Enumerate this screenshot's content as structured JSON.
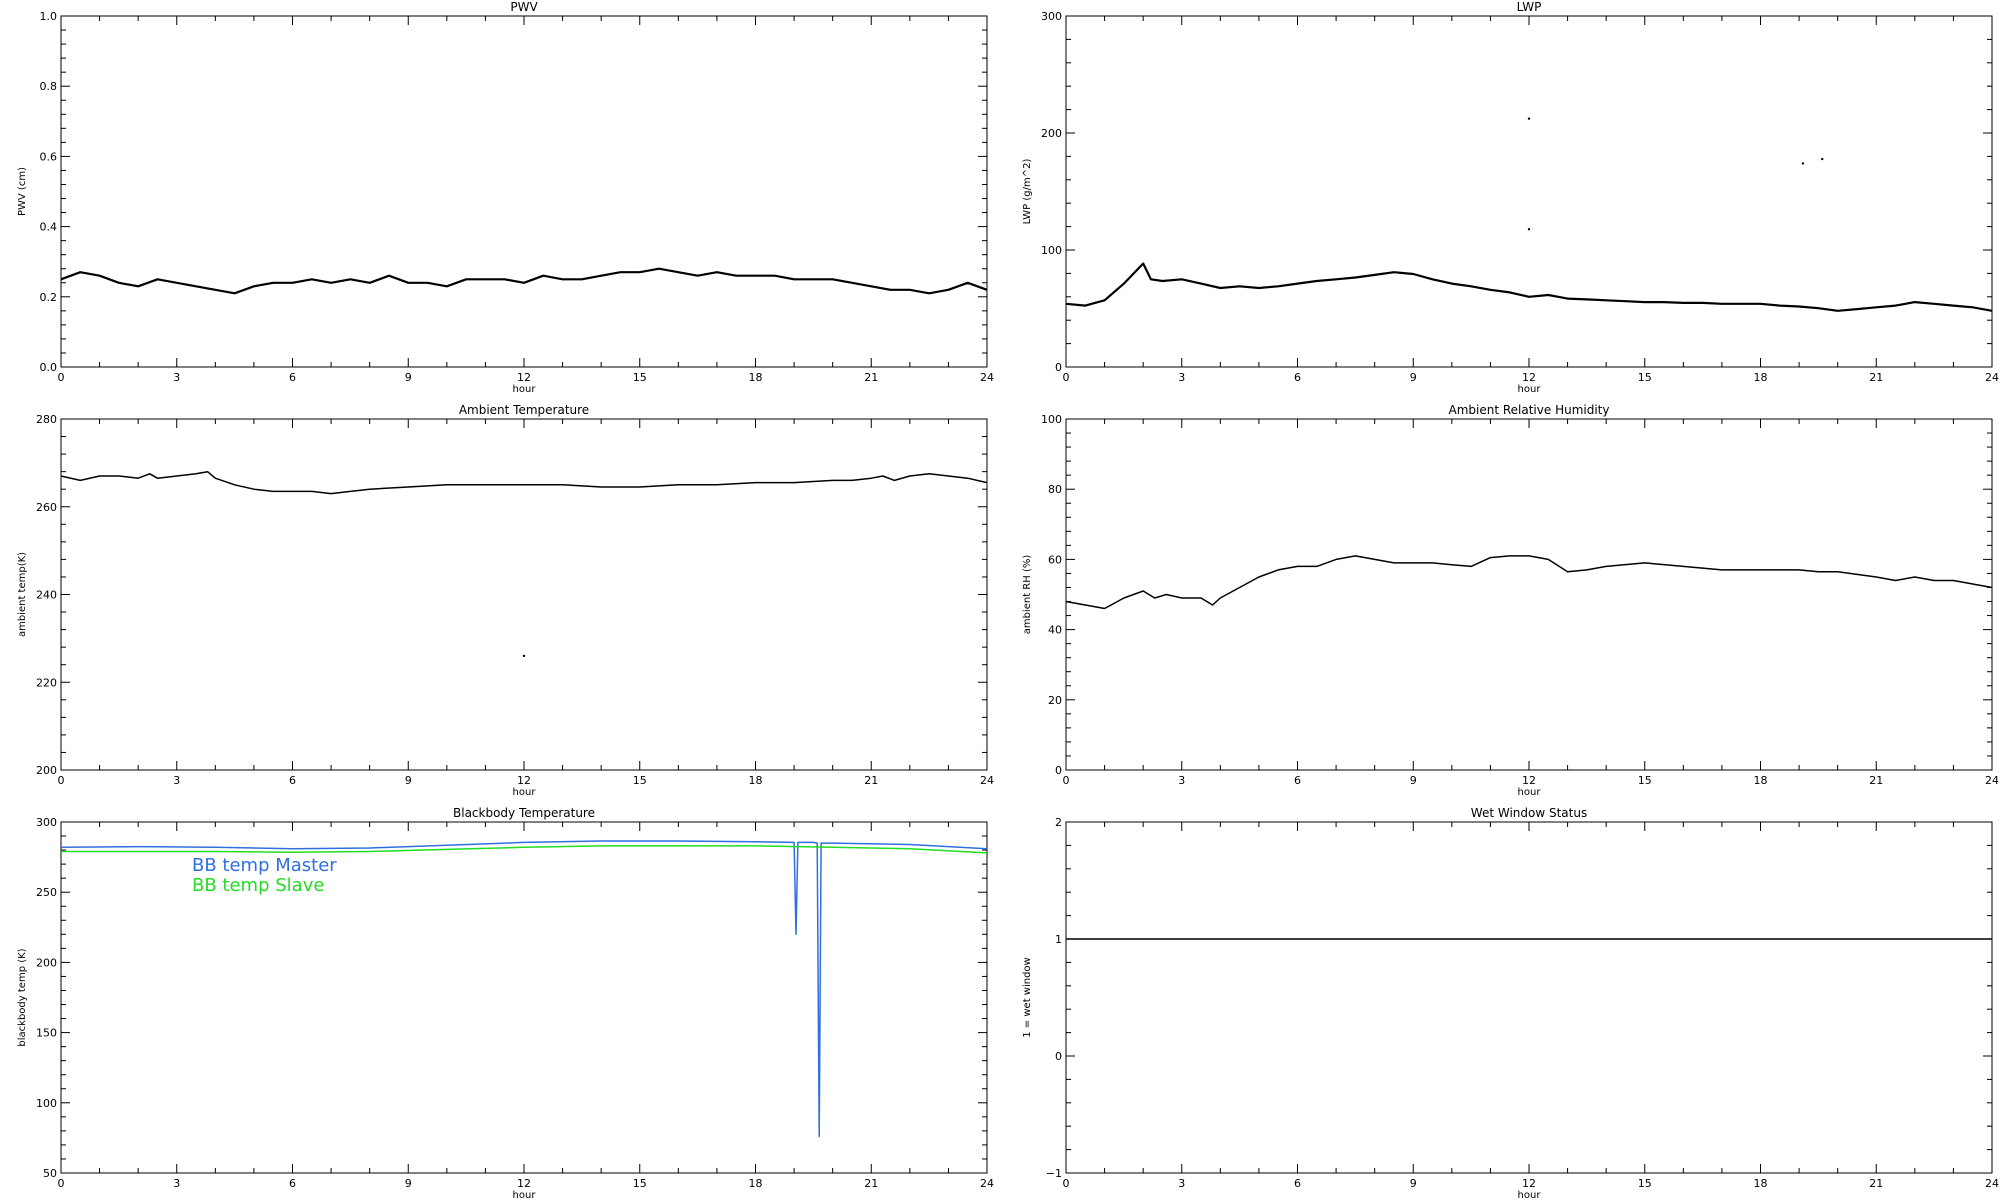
{
  "chart_data": [
    {
      "type": "line",
      "title": "PWV",
      "xlabel": "hour",
      "ylabel": "PWV (cm)",
      "xlim": [
        0,
        24
      ],
      "ylim": [
        0.0,
        1.0
      ],
      "xticks": [
        "0",
        "3",
        "6",
        "9",
        "12",
        "15",
        "18",
        "21",
        "24"
      ],
      "yticks": [
        "0.0",
        "0.2",
        "0.4",
        "0.6",
        "0.8",
        "1.0"
      ],
      "series": [
        {
          "color": "#000000",
          "x": [
            0,
            0.5,
            1,
            1.5,
            2,
            2.5,
            3,
            3.5,
            4,
            4.5,
            5,
            5.5,
            6,
            6.5,
            7,
            7.5,
            8,
            8.5,
            9,
            9.5,
            10,
            10.5,
            11,
            11.5,
            12,
            12.5,
            13,
            13.5,
            14,
            14.5,
            15,
            15.5,
            16,
            16.5,
            17,
            17.5,
            18,
            18.5,
            19,
            19.5,
            20,
            20.5,
            21,
            21.5,
            22,
            22.5,
            23,
            23.5,
            24
          ],
          "y": [
            0.25,
            0.27,
            0.26,
            0.24,
            0.23,
            0.25,
            0.24,
            0.23,
            0.22,
            0.21,
            0.23,
            0.24,
            0.24,
            0.25,
            0.24,
            0.25,
            0.24,
            0.26,
            0.24,
            0.24,
            0.23,
            0.25,
            0.25,
            0.25,
            0.24,
            0.26,
            0.25,
            0.25,
            0.26,
            0.27,
            0.27,
            0.28,
            0.27,
            0.26,
            0.27,
            0.26,
            0.26,
            0.26,
            0.25,
            0.25,
            0.25,
            0.24,
            0.23,
            0.22,
            0.22,
            0.21,
            0.22,
            0.24,
            0.22
          ]
        }
      ]
    },
    {
      "type": "line",
      "title": "LWP",
      "xlabel": "hour",
      "ylabel": "LWP (g/m^2)",
      "xlim": [
        0,
        24
      ],
      "ylim": [
        -50,
        350
      ],
      "xticks": [
        "0",
        "3",
        "6",
        "9",
        "12",
        "15",
        "18",
        "21",
        "24"
      ],
      "yticks": [
        "0",
        "100",
        "200",
        "300"
      ],
      "series": [
        {
          "color": "#000000",
          "x": [
            0,
            0.5,
            1,
            1.5,
            2,
            2.2,
            2.5,
            3,
            3.5,
            4,
            4.5,
            5,
            5.5,
            6,
            6.5,
            7,
            7.5,
            8,
            8.5,
            9,
            9.5,
            10,
            10.5,
            11,
            11.5,
            12,
            12.5,
            13,
            13.5,
            14,
            14.5,
            15,
            15.5,
            16,
            16.5,
            17,
            17.5,
            18,
            18.5,
            19,
            19.5,
            20,
            20.5,
            21,
            21.5,
            22,
            22.5,
            23,
            23.5,
            24
          ],
          "y": [
            22,
            20,
            26,
            45,
            68,
            50,
            48,
            50,
            45,
            40,
            42,
            40,
            42,
            45,
            48,
            50,
            52,
            55,
            58,
            56,
            50,
            45,
            42,
            38,
            35,
            30,
            32,
            28,
            27,
            26,
            25,
            24,
            24,
            23,
            23,
            22,
            22,
            22,
            20,
            19,
            17,
            14,
            16,
            18,
            20,
            24,
            22,
            20,
            18,
            14
          ]
        },
        {
          "color": "#000000",
          "x": [
            12,
            12,
            19.1,
            19.6
          ],
          "y": [
            233,
            107,
            182,
            187
          ]
        }
      ]
    },
    {
      "type": "line",
      "title": "Ambient Temperature",
      "xlabel": "hour",
      "ylabel": "ambient temp(K)",
      "xlim": [
        0,
        24
      ],
      "ylim": [
        200,
        280
      ],
      "xticks": [
        "0",
        "3",
        "6",
        "9",
        "12",
        "15",
        "18",
        "21",
        "24"
      ],
      "yticks": [
        "200",
        "220",
        "240",
        "260",
        "280"
      ],
      "series": [
        {
          "color": "#000000",
          "x": [
            0,
            0.5,
            1,
            1.5,
            2,
            2.3,
            2.5,
            3,
            3.5,
            3.8,
            4,
            4.5,
            5,
            5.5,
            6,
            6.5,
            7,
            7.5,
            8,
            9,
            10,
            11,
            12,
            13,
            14,
            15,
            16,
            17,
            18,
            19,
            20,
            20.5,
            21,
            21.3,
            21.6,
            22,
            22.5,
            23,
            23.5,
            24
          ],
          "y": [
            267,
            266,
            267,
            267,
            266.5,
            267.5,
            266.5,
            267,
            267.5,
            268,
            266.5,
            265,
            264,
            263.5,
            263.5,
            263.5,
            263,
            263.5,
            264,
            264.5,
            265,
            265,
            265,
            265,
            264.5,
            264.5,
            265,
            265,
            265.5,
            265.5,
            266,
            266,
            266.5,
            267,
            266,
            267,
            267.5,
            267,
            266.5,
            265.5
          ]
        },
        {
          "color": "#000000",
          "x": [
            12
          ],
          "y": [
            226
          ]
        }
      ]
    },
    {
      "type": "line",
      "title": "Ambient Relative Humidity",
      "xlabel": "hour",
      "ylabel": "ambient RH (%)",
      "xlim": [
        0,
        24
      ],
      "ylim": [
        0,
        100
      ],
      "xticks": [
        "0",
        "3",
        "6",
        "9",
        "12",
        "15",
        "18",
        "21",
        "24"
      ],
      "yticks": [
        "0",
        "20",
        "40",
        "60",
        "80",
        "100"
      ],
      "series": [
        {
          "color": "#000000",
          "x": [
            0,
            0.5,
            1,
            1.5,
            2,
            2.3,
            2.6,
            3,
            3.5,
            3.8,
            4,
            4.5,
            5,
            5.5,
            6,
            6.5,
            7,
            7.5,
            8,
            8.5,
            9,
            9.5,
            10,
            10.5,
            11,
            11.5,
            12,
            12.5,
            13,
            13.5,
            14,
            15,
            16,
            17,
            18,
            18.5,
            19,
            19.5,
            20,
            21,
            21.5,
            22,
            22.5,
            23,
            23.5,
            24
          ],
          "y": [
            48,
            47,
            46,
            49,
            51,
            49,
            50,
            49,
            49,
            47,
            49,
            52,
            55,
            57,
            58,
            58,
            60,
            61,
            60,
            59,
            59,
            59,
            58.5,
            58,
            60.5,
            61,
            61,
            60,
            56.5,
            57,
            58,
            59,
            58,
            57,
            57,
            57,
            57,
            56.5,
            56.5,
            55,
            54,
            55,
            54,
            54,
            53,
            52
          ]
        }
      ]
    },
    {
      "type": "line",
      "title": "Blackbody Temperature",
      "xlabel": "hour",
      "ylabel": "blackbody temp (K)",
      "xlim": [
        0,
        24
      ],
      "ylim": [
        50,
        300
      ],
      "xticks": [
        "0",
        "3",
        "6",
        "9",
        "12",
        "15",
        "18",
        "21",
        "24"
      ],
      "yticks": [
        "50",
        "100",
        "150",
        "200",
        "250",
        "300"
      ],
      "legend": {
        "position": "top-left"
      },
      "series": [
        {
          "name": "BB temp Master",
          "color": "#2f6fe0",
          "x": [
            0,
            2,
            4,
            6,
            8,
            10,
            12,
            14,
            16,
            18,
            19,
            19.05,
            19.1,
            19.5,
            19.6,
            19.65,
            19.7,
            20,
            22,
            24
          ],
          "y": [
            282,
            282.5,
            282,
            281,
            281.5,
            283.5,
            285.5,
            286.5,
            286.5,
            286,
            285.5,
            220,
            285.5,
            285.5,
            285,
            76,
            285,
            285,
            284,
            281
          ]
        },
        {
          "name": "BB temp Slave",
          "color": "#22dd22",
          "x": [
            0,
            2,
            4,
            6,
            8,
            10,
            12,
            14,
            16,
            18,
            20,
            22,
            24
          ],
          "y": [
            279,
            279,
            279,
            278.5,
            279,
            280.5,
            282,
            283,
            283,
            283,
            282,
            281,
            278
          ]
        }
      ]
    },
    {
      "type": "line",
      "title": "Wet Window Status",
      "xlabel": "hour",
      "ylabel": "1 = wet window",
      "xlim": [
        0,
        24
      ],
      "ylim": [
        -1,
        2
      ],
      "xticks": [
        "0",
        "3",
        "6",
        "9",
        "12",
        "15",
        "18",
        "21",
        "24"
      ],
      "yticks": [
        "−1",
        "0",
        "1",
        "2"
      ],
      "series": [
        {
          "color": "#000000",
          "x": [
            0,
            24
          ],
          "y": [
            1,
            1
          ]
        }
      ]
    }
  ]
}
